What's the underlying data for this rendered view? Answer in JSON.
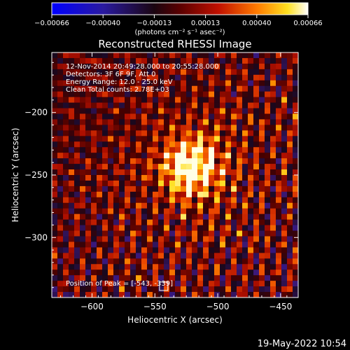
{
  "colorbar": {
    "ticks": [
      "-0.00066",
      "-0.00040",
      "-0.00013",
      "0.00013",
      "0.00040",
      "0.00066"
    ],
    "units": "(photons cm⁻² s⁻¹ asec⁻²)",
    "range": [
      -0.00066,
      0.00066
    ]
  },
  "chart_data": {
    "type": "heatmap",
    "title": "Reconstructed RHESSI Image",
    "xlabel": "Heliocentric X (arcsec)",
    "ylabel": "Heliocentric Y (arcsec)",
    "xlim": [
      -632,
      -436
    ],
    "ylim": [
      -348,
      -152
    ],
    "xticks": [
      -600,
      -550,
      -500,
      -450
    ],
    "yticks": [
      -200,
      -250,
      -300
    ],
    "xtick_labels": [
      "−600",
      "−550",
      "−500",
      "−450"
    ],
    "ytick_labels": [
      "−200",
      "−250",
      "−300"
    ],
    "info_lines": [
      "12-Nov-2014 20:49:28.000 to 20:55:28.000",
      "Detectors: 3F 6F 9F, Att 0",
      "Energy Range: 12.0 - 25.0 keV",
      "Clean     Total counts: 2.78E+03"
    ],
    "peak_text": "Position of Peak = [-543, -339]",
    "peak": [
      -543,
      -339
    ],
    "source_center": [
      -520,
      -244
    ]
  },
  "footer": {
    "timestamp": "19-May-2022 10:54"
  }
}
